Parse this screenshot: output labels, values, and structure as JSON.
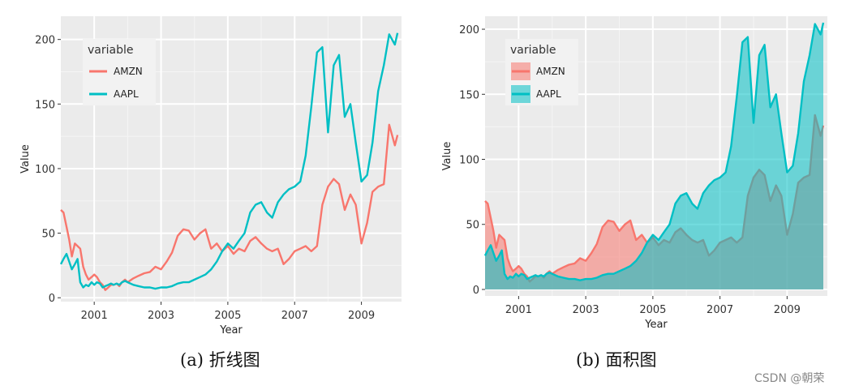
{
  "captions": {
    "left": "(a)  折线图",
    "right": "(b)  面积图"
  },
  "watermark": "CSDN @朝荣",
  "chart_data": [
    {
      "type": "line",
      "xlabel": "Year",
      "ylabel": "Value",
      "legend_title": "variable",
      "legend_position": "top-left",
      "grid": true,
      "xlim": [
        2000.0,
        2010.2
      ],
      "ylim": [
        -3,
        218
      ],
      "xticks": [
        "2001",
        "2003",
        "2005",
        "2007",
        "2009"
      ],
      "xtick_values": [
        2001,
        2003,
        2005,
        2007,
        2009
      ],
      "yticks": [
        "0",
        "50",
        "100",
        "150",
        "200"
      ],
      "ytick_values": [
        0,
        50,
        100,
        150,
        200
      ],
      "series": [
        {
          "name": "AMZN",
          "color": "#F8766D",
          "x": [
            2000.0,
            2000.08,
            2000.17,
            2000.25,
            2000.33,
            2000.42,
            2000.5,
            2000.58,
            2000.67,
            2000.75,
            2000.83,
            2000.92,
            2001.0,
            2001.08,
            2001.17,
            2001.25,
            2001.33,
            2001.42,
            2001.5,
            2001.58,
            2001.67,
            2001.75,
            2001.83,
            2001.92,
            2002.0,
            2002.17,
            2002.33,
            2002.5,
            2002.67,
            2002.83,
            2003.0,
            2003.17,
            2003.33,
            2003.5,
            2003.67,
            2003.83,
            2004.0,
            2004.17,
            2004.33,
            2004.5,
            2004.67,
            2004.83,
            2005.0,
            2005.17,
            2005.33,
            2005.5,
            2005.67,
            2005.83,
            2006.0,
            2006.17,
            2006.33,
            2006.5,
            2006.67,
            2006.83,
            2007.0,
            2007.17,
            2007.33,
            2007.5,
            2007.67,
            2007.83,
            2008.0,
            2008.17,
            2008.33,
            2008.5,
            2008.67,
            2008.83,
            2009.0,
            2009.17,
            2009.33,
            2009.5,
            2009.67,
            2009.83,
            2010.0,
            2010.08
          ],
          "y": [
            68,
            66,
            55,
            45,
            32,
            42,
            40,
            38,
            24,
            18,
            14,
            16,
            18,
            16,
            12,
            10,
            6,
            8,
            10,
            10,
            11,
            9,
            12,
            14,
            12,
            15,
            17,
            19,
            20,
            24,
            22,
            28,
            35,
            48,
            53,
            52,
            45,
            50,
            53,
            38,
            42,
            36,
            40,
            34,
            38,
            36,
            44,
            47,
            42,
            38,
            36,
            38,
            26,
            30,
            36,
            38,
            40,
            36,
            40,
            72,
            86,
            92,
            88,
            68,
            80,
            72,
            42,
            58,
            82,
            86,
            88,
            134,
            118,
            126
          ]
        },
        {
          "name": "AAPL",
          "color": "#00BFC4",
          "x": [
            2000.0,
            2000.08,
            2000.17,
            2000.25,
            2000.33,
            2000.42,
            2000.5,
            2000.58,
            2000.67,
            2000.75,
            2000.83,
            2000.92,
            2001.0,
            2001.08,
            2001.17,
            2001.25,
            2001.33,
            2001.42,
            2001.5,
            2001.58,
            2001.67,
            2001.75,
            2001.83,
            2001.92,
            2002.0,
            2002.17,
            2002.33,
            2002.5,
            2002.67,
            2002.83,
            2003.0,
            2003.17,
            2003.33,
            2003.5,
            2003.67,
            2003.83,
            2004.0,
            2004.17,
            2004.33,
            2004.5,
            2004.67,
            2004.83,
            2005.0,
            2005.17,
            2005.33,
            2005.5,
            2005.67,
            2005.83,
            2006.0,
            2006.17,
            2006.33,
            2006.5,
            2006.67,
            2006.83,
            2007.0,
            2007.17,
            2007.33,
            2007.5,
            2007.67,
            2007.83,
            2008.0,
            2008.17,
            2008.33,
            2008.5,
            2008.67,
            2008.83,
            2009.0,
            2009.17,
            2009.33,
            2009.5,
            2009.67,
            2009.83,
            2010.0,
            2010.08
          ],
          "y": [
            26,
            30,
            34,
            28,
            22,
            26,
            30,
            12,
            8,
            10,
            9,
            12,
            10,
            12,
            11,
            8,
            9,
            10,
            11,
            10,
            11,
            10,
            12,
            13,
            12,
            10,
            9,
            8,
            8,
            7,
            8,
            8,
            9,
            11,
            12,
            12,
            14,
            16,
            18,
            22,
            28,
            36,
            42,
            38,
            44,
            50,
            66,
            72,
            74,
            66,
            62,
            74,
            80,
            84,
            86,
            90,
            110,
            148,
            190,
            194,
            128,
            180,
            188,
            140,
            150,
            120,
            90,
            95,
            120,
            160,
            180,
            204,
            196,
            205
          ]
        }
      ]
    },
    {
      "type": "area",
      "xlabel": "Year",
      "ylabel": "Value",
      "legend_title": "variable",
      "legend_position": "top-left",
      "grid": true,
      "xlim": [
        2000.0,
        2010.2
      ],
      "ylim": [
        -5,
        210
      ],
      "xticks": [
        "2001",
        "2003",
        "2005",
        "2007",
        "2009"
      ],
      "xtick_values": [
        2001,
        2003,
        2005,
        2007,
        2009
      ],
      "yticks": [
        "0",
        "50",
        "100",
        "150",
        "200"
      ],
      "ytick_values": [
        0,
        50,
        100,
        150,
        200
      ],
      "series": [
        {
          "name": "AMZN",
          "color": "#F8766D",
          "x": [
            2000.0,
            2000.08,
            2000.17,
            2000.25,
            2000.33,
            2000.42,
            2000.5,
            2000.58,
            2000.67,
            2000.75,
            2000.83,
            2000.92,
            2001.0,
            2001.08,
            2001.17,
            2001.25,
            2001.33,
            2001.42,
            2001.5,
            2001.58,
            2001.67,
            2001.75,
            2001.83,
            2001.92,
            2002.0,
            2002.17,
            2002.33,
            2002.5,
            2002.67,
            2002.83,
            2003.0,
            2003.17,
            2003.33,
            2003.5,
            2003.67,
            2003.83,
            2004.0,
            2004.17,
            2004.33,
            2004.5,
            2004.67,
            2004.83,
            2005.0,
            2005.17,
            2005.33,
            2005.5,
            2005.67,
            2005.83,
            2006.0,
            2006.17,
            2006.33,
            2006.5,
            2006.67,
            2006.83,
            2007.0,
            2007.17,
            2007.33,
            2007.5,
            2007.67,
            2007.83,
            2008.0,
            2008.17,
            2008.33,
            2008.5,
            2008.67,
            2008.83,
            2009.0,
            2009.17,
            2009.33,
            2009.5,
            2009.67,
            2009.83,
            2010.0,
            2010.08
          ],
          "y": [
            68,
            66,
            55,
            45,
            32,
            42,
            40,
            38,
            24,
            18,
            14,
            16,
            18,
            16,
            12,
            10,
            6,
            8,
            10,
            10,
            11,
            9,
            12,
            14,
            12,
            15,
            17,
            19,
            20,
            24,
            22,
            28,
            35,
            48,
            53,
            52,
            45,
            50,
            53,
            38,
            42,
            36,
            40,
            34,
            38,
            36,
            44,
            47,
            42,
            38,
            36,
            38,
            26,
            30,
            36,
            38,
            40,
            36,
            40,
            72,
            86,
            92,
            88,
            68,
            80,
            72,
            42,
            58,
            82,
            86,
            88,
            134,
            118,
            126
          ]
        },
        {
          "name": "AAPL",
          "color": "#00BFC4",
          "x": [
            2000.0,
            2000.08,
            2000.17,
            2000.25,
            2000.33,
            2000.42,
            2000.5,
            2000.58,
            2000.67,
            2000.75,
            2000.83,
            2000.92,
            2001.0,
            2001.08,
            2001.17,
            2001.25,
            2001.33,
            2001.42,
            2001.5,
            2001.58,
            2001.67,
            2001.75,
            2001.83,
            2001.92,
            2002.0,
            2002.17,
            2002.33,
            2002.5,
            2002.67,
            2002.83,
            2003.0,
            2003.17,
            2003.33,
            2003.5,
            2003.67,
            2003.83,
            2004.0,
            2004.17,
            2004.33,
            2004.5,
            2004.67,
            2004.83,
            2005.0,
            2005.17,
            2005.33,
            2005.5,
            2005.67,
            2005.83,
            2006.0,
            2006.17,
            2006.33,
            2006.5,
            2006.67,
            2006.83,
            2007.0,
            2007.17,
            2007.33,
            2007.5,
            2007.67,
            2007.83,
            2008.0,
            2008.17,
            2008.33,
            2008.5,
            2008.67,
            2008.83,
            2009.0,
            2009.17,
            2009.33,
            2009.5,
            2009.67,
            2009.83,
            2010.0,
            2010.08
          ],
          "y": [
            26,
            30,
            34,
            28,
            22,
            26,
            30,
            12,
            8,
            10,
            9,
            12,
            10,
            12,
            11,
            8,
            9,
            10,
            11,
            10,
            11,
            10,
            12,
            13,
            12,
            10,
            9,
            8,
            8,
            7,
            8,
            8,
            9,
            11,
            12,
            12,
            14,
            16,
            18,
            22,
            28,
            36,
            42,
            38,
            44,
            50,
            66,
            72,
            74,
            66,
            62,
            74,
            80,
            84,
            86,
            90,
            110,
            148,
            190,
            194,
            128,
            180,
            188,
            140,
            150,
            120,
            90,
            95,
            120,
            160,
            180,
            204,
            196,
            205
          ]
        }
      ]
    }
  ]
}
